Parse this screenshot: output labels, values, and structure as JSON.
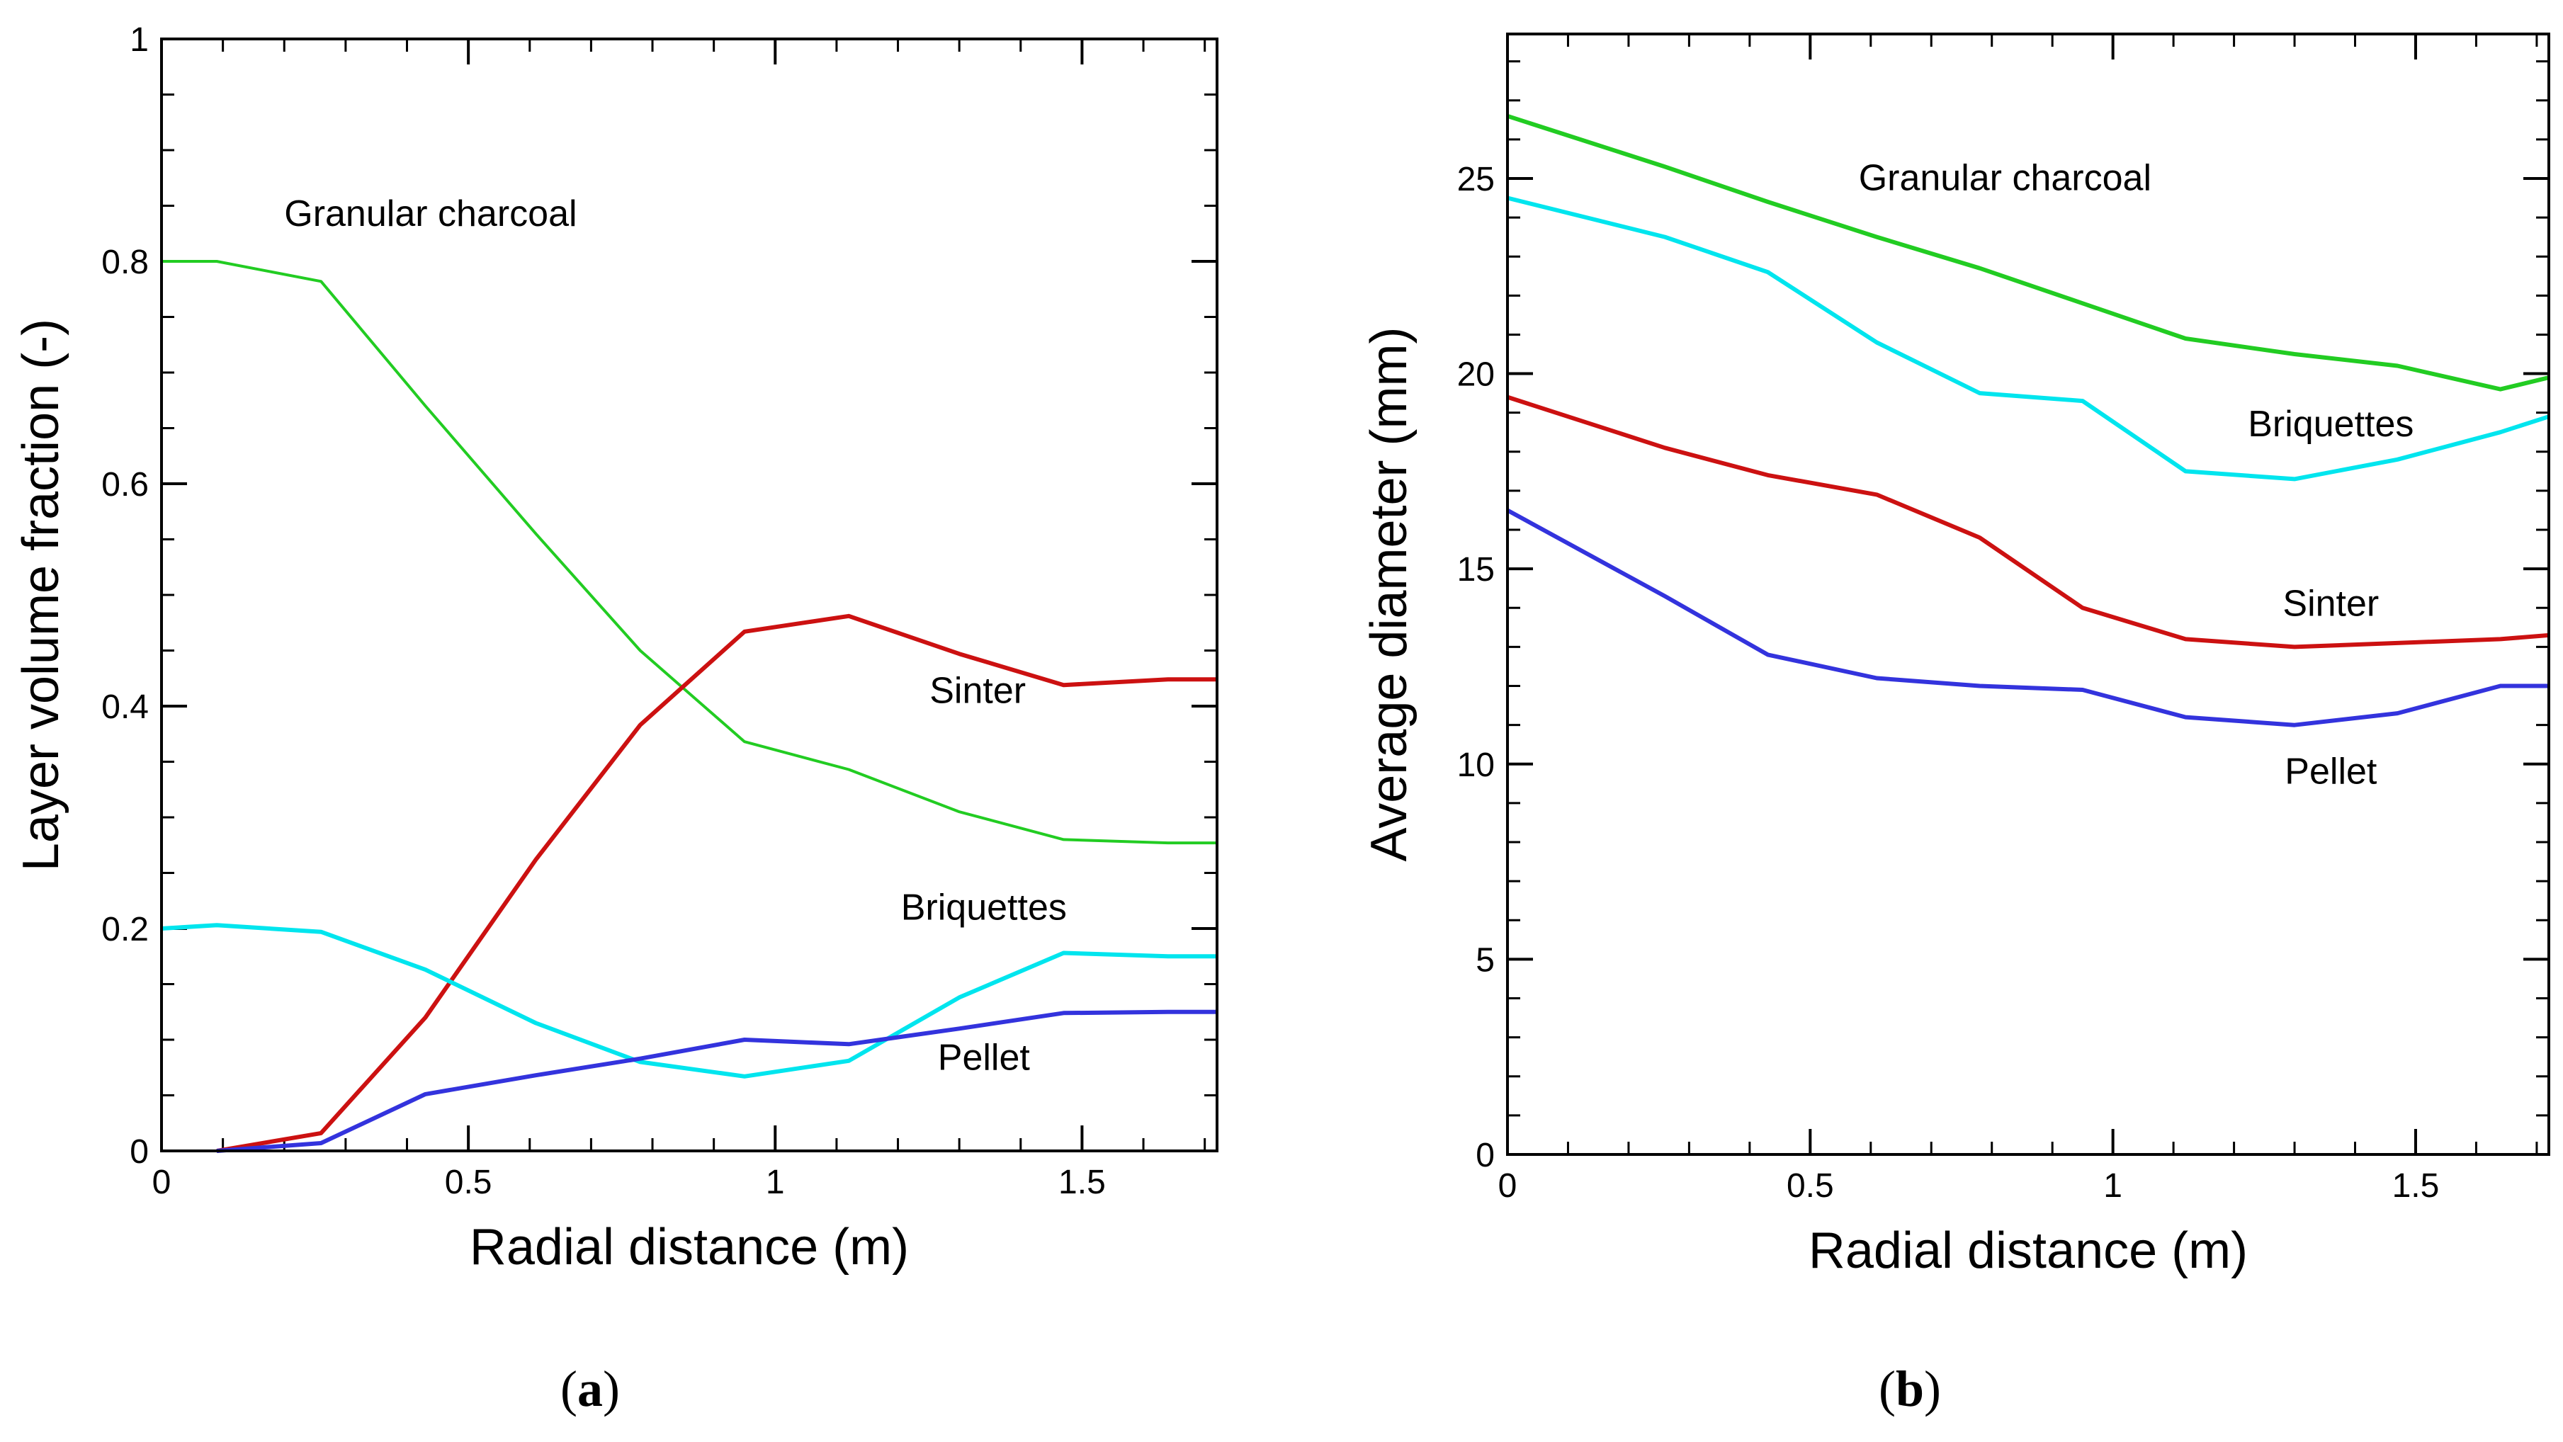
{
  "chart_data": [
    {
      "panel": "a",
      "type": "line",
      "xlabel": "Radial distance (m)",
      "ylabel": "Layer volume fraction (-)",
      "xlim": [
        0,
        1.72
      ],
      "ylim": [
        0,
        1
      ],
      "x_ticks": [
        "0",
        "0.5",
        "1",
        "1.5"
      ],
      "y_ticks": [
        "0",
        "0.2",
        "0.4",
        "0.6",
        "0.8",
        "1"
      ],
      "grid": false,
      "series": [
        {
          "name": "Granular charcoal",
          "color": "#22cc22",
          "x": [
            0,
            0.09,
            0.26,
            0.43,
            0.61,
            0.78,
            0.95,
            1.12,
            1.3,
            1.47,
            1.64,
            1.72
          ],
          "y": [
            0.8,
            0.8,
            0.782,
            0.67,
            0.555,
            0.45,
            0.368,
            0.343,
            0.305,
            0.28,
            0.277,
            0.277
          ]
        },
        {
          "name": "Sinter",
          "color": "#cc1111",
          "x": [
            0.09,
            0.26,
            0.43,
            0.61,
            0.78,
            0.95,
            1.12,
            1.3,
            1.47,
            1.64,
            1.72
          ],
          "y": [
            0.0,
            0.016,
            0.12,
            0.262,
            0.383,
            0.467,
            0.481,
            0.447,
            0.419,
            0.424,
            0.424
          ]
        },
        {
          "name": "Briquettes",
          "color": "#00e5ee",
          "x": [
            0,
            0.09,
            0.26,
            0.43,
            0.61,
            0.78,
            0.95,
            1.12,
            1.3,
            1.47,
            1.64,
            1.72
          ],
          "y": [
            0.2,
            0.203,
            0.197,
            0.163,
            0.115,
            0.08,
            0.067,
            0.081,
            0.138,
            0.178,
            0.175,
            0.175
          ]
        },
        {
          "name": "Pellet",
          "color": "#3333dd",
          "x": [
            0.09,
            0.26,
            0.43,
            0.61,
            0.78,
            0.95,
            1.12,
            1.3,
            1.47,
            1.64,
            1.72
          ],
          "y": [
            0.0,
            0.007,
            0.051,
            0.068,
            0.083,
            0.1,
            0.096,
            0.11,
            0.124,
            0.125,
            0.125
          ]
        }
      ],
      "annotations": [
        {
          "text": "Granular charcoal",
          "x": 0.2,
          "y": 0.832,
          "anchor": "start"
        },
        {
          "text": "Sinter",
          "x": 1.33,
          "y": 0.403,
          "anchor": "middle"
        },
        {
          "text": "Briquettes",
          "x": 1.34,
          "y": 0.208,
          "anchor": "middle"
        },
        {
          "text": "Pellet",
          "x": 1.34,
          "y": 0.073,
          "anchor": "middle"
        }
      ],
      "caption": "(a)"
    },
    {
      "panel": "b",
      "type": "line",
      "xlabel": "Radial distance (m)",
      "ylabel": "Average diameter (mm)",
      "xlim": [
        0,
        1.72
      ],
      "ylim": [
        0,
        28.7
      ],
      "x_ticks": [
        "0",
        "0.5",
        "1",
        "1.5"
      ],
      "y_ticks": [
        "0",
        "5",
        "10",
        "15",
        "20",
        "25"
      ],
      "grid": false,
      "series": [
        {
          "name": "Granular charcoal",
          "color": "#22cc22",
          "x": [
            0,
            0.26,
            0.43,
            0.61,
            0.78,
            0.95,
            1.12,
            1.3,
            1.47,
            1.64,
            1.72
          ],
          "y": [
            26.6,
            25.3,
            24.4,
            23.5,
            22.7,
            21.8,
            20.9,
            20.5,
            20.2,
            19.6,
            19.9
          ]
        },
        {
          "name": "Briquettes",
          "color": "#00e5ee",
          "x": [
            0,
            0.26,
            0.43,
            0.61,
            0.78,
            0.95,
            1.12,
            1.3,
            1.47,
            1.64,
            1.72
          ],
          "y": [
            24.5,
            23.5,
            22.6,
            20.8,
            19.5,
            19.3,
            17.5,
            17.3,
            17.8,
            18.5,
            18.9
          ]
        },
        {
          "name": "Sinter",
          "color": "#cc1111",
          "x": [
            0,
            0.26,
            0.43,
            0.61,
            0.78,
            0.95,
            1.12,
            1.3,
            1.47,
            1.64,
            1.72
          ],
          "y": [
            19.4,
            18.1,
            17.4,
            16.9,
            15.8,
            14.0,
            13.2,
            13.0,
            13.1,
            13.2,
            13.3
          ]
        },
        {
          "name": "Pellet",
          "color": "#3333dd",
          "x": [
            0,
            0.26,
            0.43,
            0.61,
            0.78,
            0.95,
            1.12,
            1.3,
            1.47,
            1.64,
            1.72
          ],
          "y": [
            16.5,
            14.3,
            12.8,
            12.2,
            12.0,
            11.9,
            11.2,
            11.0,
            11.3,
            12.0,
            12.0
          ]
        }
      ],
      "annotations": [
        {
          "text": "Granular charcoal",
          "x": 0.58,
          "y": 24.7,
          "anchor": "start"
        },
        {
          "text": "Briquettes",
          "x": 1.36,
          "y": 18.4,
          "anchor": "middle"
        },
        {
          "text": "Sinter",
          "x": 1.36,
          "y": 13.8,
          "anchor": "middle"
        },
        {
          "text": "Pellet",
          "x": 1.36,
          "y": 9.5,
          "anchor": "middle"
        }
      ],
      "caption": "(b)"
    }
  ]
}
